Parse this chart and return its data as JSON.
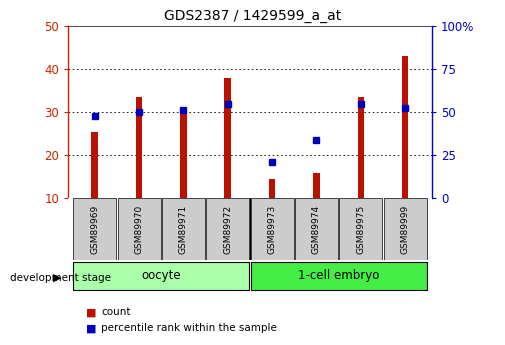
{
  "title": "GDS2387 / 1429599_a_at",
  "samples": [
    "GSM89969",
    "GSM89970",
    "GSM89971",
    "GSM89972",
    "GSM89973",
    "GSM89974",
    "GSM89975",
    "GSM89999"
  ],
  "counts": [
    25.5,
    33.5,
    31.0,
    38.0,
    14.5,
    16.0,
    33.5,
    43.0
  ],
  "percentile_ranks_left": [
    29.0,
    30.0,
    30.5,
    32.0,
    18.5,
    23.5,
    32.0,
    31.0
  ],
  "bar_bottom": 10,
  "ylim_left": [
    10,
    50
  ],
  "ylim_right": [
    0,
    100
  ],
  "yticks_left": [
    10,
    20,
    30,
    40,
    50
  ],
  "yticks_right": [
    0,
    25,
    50,
    75,
    100
  ],
  "ytick_labels_right": [
    "0",
    "25",
    "50",
    "75",
    "100%"
  ],
  "groups": [
    {
      "label": "oocyte",
      "start": 0,
      "end": 3,
      "color": "#AAFFAA"
    },
    {
      "label": "1-cell embryo",
      "start": 4,
      "end": 7,
      "color": "#44EE44"
    }
  ],
  "bar_color": "#BB1100",
  "dot_color": "#0000BB",
  "plot_bg": "#FFFFFF",
  "tick_label_bg": "#CCCCCC",
  "left_tick_color": "#CC2200",
  "right_tick_color": "#0000CC",
  "dev_stage_label": "development stage",
  "legend_count": "count",
  "legend_pct": "percentile rank within the sample",
  "bar_width": 0.15
}
